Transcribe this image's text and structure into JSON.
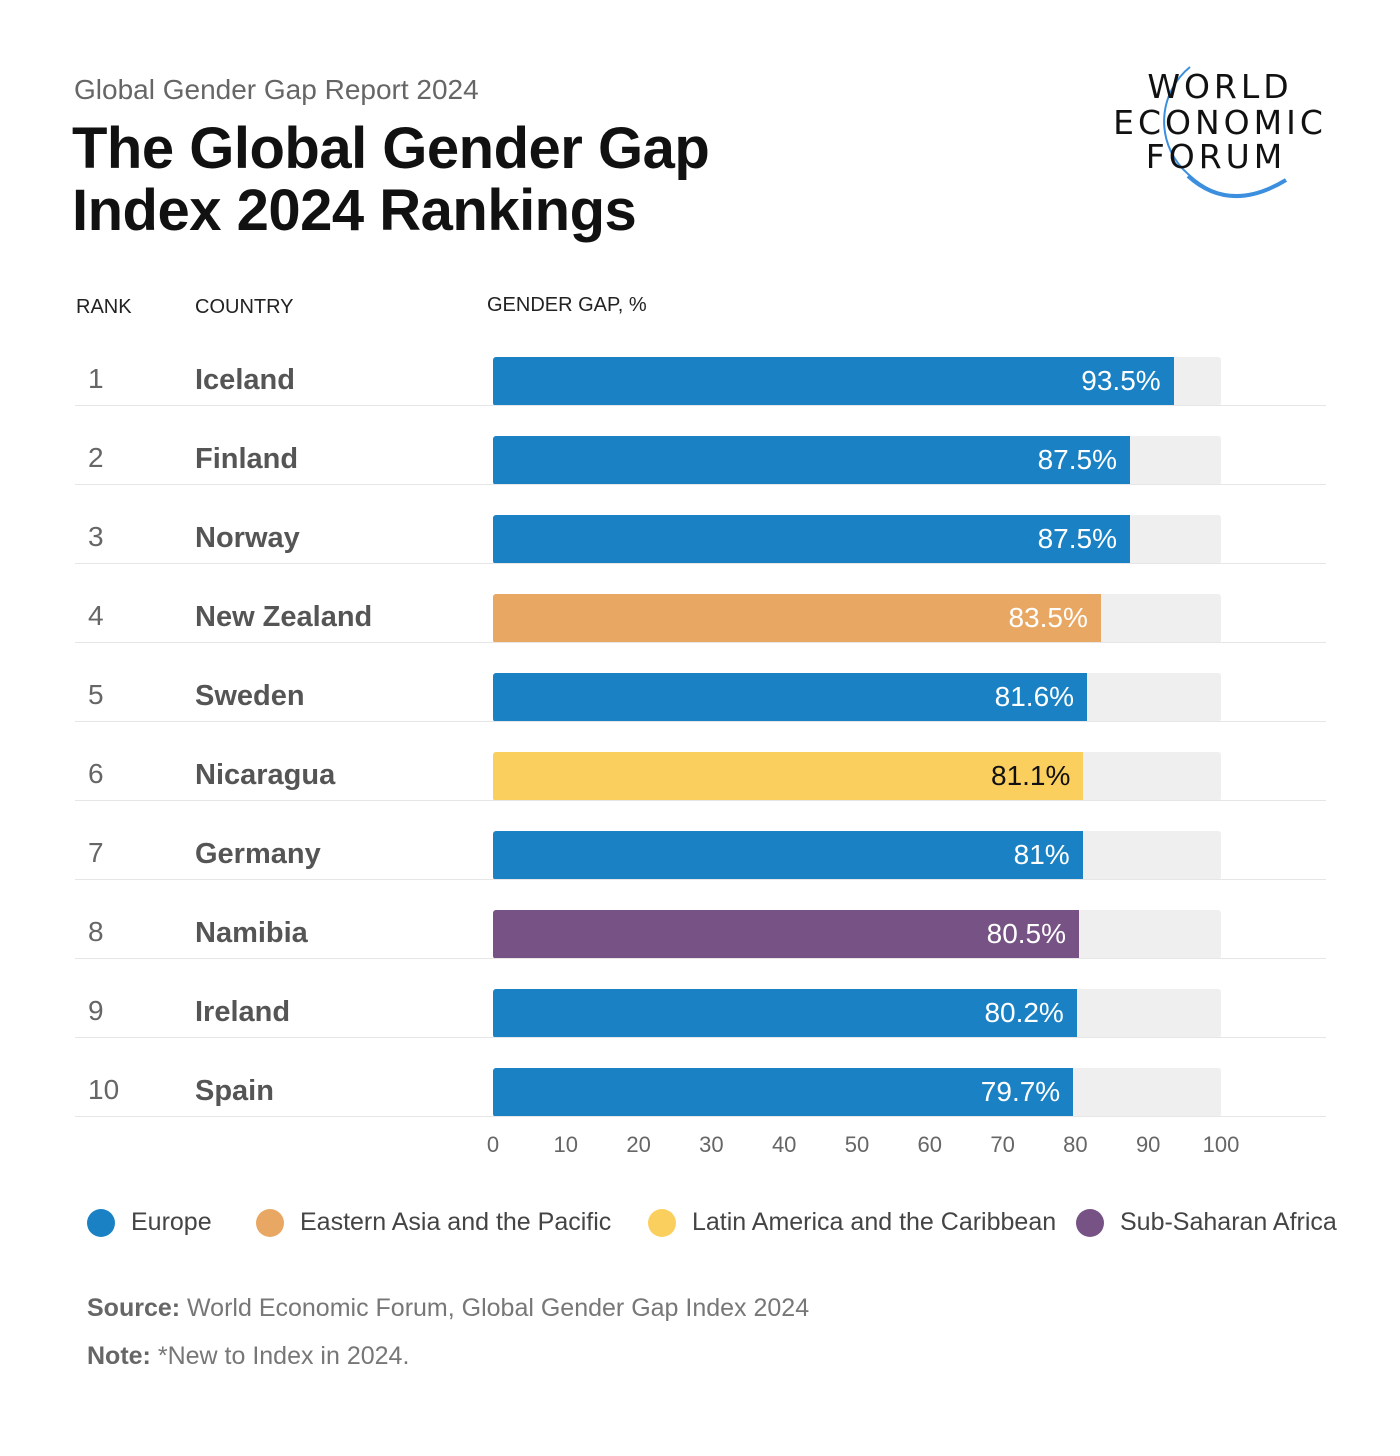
{
  "header": {
    "subtitle": "Global Gender Gap Report 2024",
    "title": "The Global Gender Gap Index 2024 Rankings",
    "logo_text": "WORLD ECONOMIC FORUM"
  },
  "columns": {
    "rank": "RANK",
    "country": "COUNTRY",
    "value": "GENDER GAP, %"
  },
  "colors": {
    "Europe": "#1a82c4",
    "Eastern Asia and the Pacific": "#e8a863",
    "Latin America and the Caribbean": "#fbcf5e",
    "Sub-Saharan Africa": "#775285",
    "track": "#efefef"
  },
  "chart_data": {
    "type": "bar",
    "orientation": "horizontal",
    "xlabel": "GENDER GAP, %",
    "xlim": [
      0,
      100
    ],
    "xticks": [
      "0",
      "10",
      "20",
      "30",
      "40",
      "50",
      "60",
      "70",
      "80",
      "90",
      "100"
    ],
    "grid": false,
    "legend_placement": "bottom",
    "legend": [
      "Europe",
      "Eastern Asia and the Pacific",
      "Latin America and the Caribbean",
      "Sub-Saharan Africa"
    ],
    "rows": [
      {
        "rank": "1",
        "country": "Iceland",
        "value": 93.5,
        "label": "93.5%",
        "region": "Europe"
      },
      {
        "rank": "2",
        "country": "Finland",
        "value": 87.5,
        "label": "87.5%",
        "region": "Europe"
      },
      {
        "rank": "3",
        "country": "Norway",
        "value": 87.5,
        "label": "87.5%",
        "region": "Europe"
      },
      {
        "rank": "4",
        "country": "New Zealand",
        "value": 83.5,
        "label": "83.5%",
        "region": "Eastern Asia and the Pacific"
      },
      {
        "rank": "5",
        "country": "Sweden",
        "value": 81.6,
        "label": "81.6%",
        "region": "Europe"
      },
      {
        "rank": "6",
        "country": "Nicaragua",
        "value": 81.1,
        "label": "81.1%",
        "region": "Latin America and the Caribbean"
      },
      {
        "rank": "7",
        "country": "Germany",
        "value": 81,
        "label": "81%",
        "region": "Europe"
      },
      {
        "rank": "8",
        "country": "Namibia",
        "value": 80.5,
        "label": "80.5%",
        "region": "Sub-Saharan Africa"
      },
      {
        "rank": "9",
        "country": "Ireland",
        "value": 80.2,
        "label": "80.2%",
        "region": "Europe"
      },
      {
        "rank": "10",
        "country": "Spain",
        "value": 79.7,
        "label": "79.7%",
        "region": "Europe"
      }
    ]
  },
  "footer": {
    "source_label": "Source:",
    "source_text": " World Economic Forum, Global Gender Gap Index 2024",
    "note_label": "Note:",
    "note_text": " *New to Index in 2024."
  }
}
